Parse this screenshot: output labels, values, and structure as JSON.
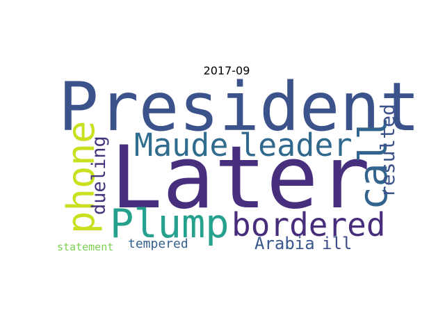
{
  "title": "2017-09",
  "words": [
    {
      "text": "President",
      "color": "#3b528b"
    },
    {
      "text": "Later",
      "color": "#472f7d"
    },
    {
      "text": "Maude",
      "color": "#2f6c8e"
    },
    {
      "text": "leader",
      "color": "#31688e"
    },
    {
      "text": "call",
      "color": "#32648e"
    },
    {
      "text": "resulted",
      "color": "#3b528b"
    },
    {
      "text": "phone",
      "color": "#c8e020"
    },
    {
      "text": "dueling",
      "color": "#46337e"
    },
    {
      "text": "Plump",
      "color": "#25a18e"
    },
    {
      "text": "bordered",
      "color": "#472d7b"
    },
    {
      "text": "statement",
      "color": "#7ad151"
    },
    {
      "text": "tempered",
      "color": "#34618d"
    },
    {
      "text": "Arabia",
      "color": "#38588c"
    },
    {
      "text": "ill",
      "color": "#3d4e8a"
    }
  ]
}
